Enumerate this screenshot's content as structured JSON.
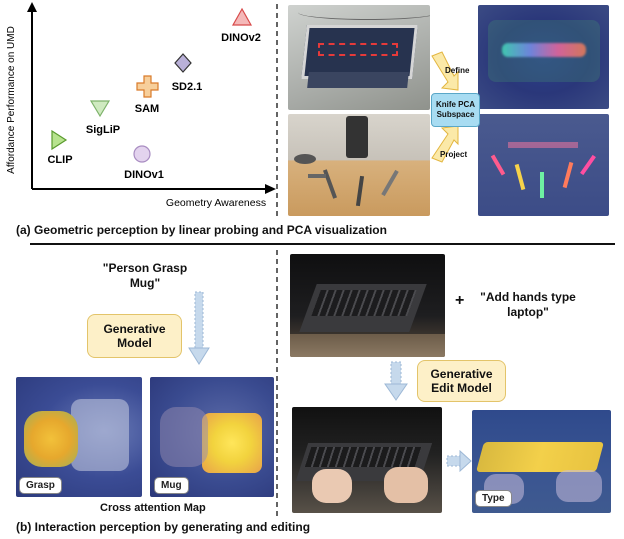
{
  "scatter": {
    "xlabel": "Geometry Awareness",
    "ylabel": "Affordance Performance on UMD",
    "points": [
      {
        "label": "DINOv2",
        "shape": "triangle-up",
        "color": "#f4b8b8",
        "stroke": "#d84a4a"
      },
      {
        "label": "SD2.1",
        "shape": "diamond",
        "color": "#b9b0d8",
        "stroke": "#333333"
      },
      {
        "label": "SAM",
        "shape": "plus",
        "color": "#f7cf9b",
        "stroke": "#d97b2a"
      },
      {
        "label": "SigLiP",
        "shape": "triangle-down",
        "color": "#cfeac0",
        "stroke": "#7db26a"
      },
      {
        "label": "CLIP",
        "shape": "triangle-right",
        "color": "#b7e38e",
        "stroke": "#5a9b2e"
      },
      {
        "label": "DINOv1",
        "shape": "circle",
        "color": "#e3d3ee",
        "stroke": "#a88cc1"
      }
    ]
  },
  "pca": {
    "define_label": "Define",
    "project_label": "Project",
    "subspace_label_line1": "Knife PCA",
    "subspace_label_line2": "Subspace"
  },
  "caption_a": "(a) Geometric perception by linear probing and PCA visualization",
  "generative": {
    "prompt_line1": "\"Person Grasp",
    "prompt_line2": "Mug\"",
    "model_line1": "Generative",
    "model_line2": "Model",
    "chip_grasp": "Grasp",
    "chip_mug": "Mug",
    "cross_attention_label": "Cross attention Map"
  },
  "edit": {
    "plus_sign": "+",
    "prompt_line1": "\"Add hands type",
    "prompt_line2": "laptop\"",
    "model_line1": "Generative",
    "model_line2": "Edit Model",
    "chip_type": "Type"
  },
  "caption_b": "(b) Interaction perception by generating and editing",
  "colors": {
    "pca_box": "#a8dcf2",
    "yellow_box": "#fdf0c8",
    "arrow_yellow": "#f3d27a",
    "arrow_blue": "#c6d9ec"
  }
}
